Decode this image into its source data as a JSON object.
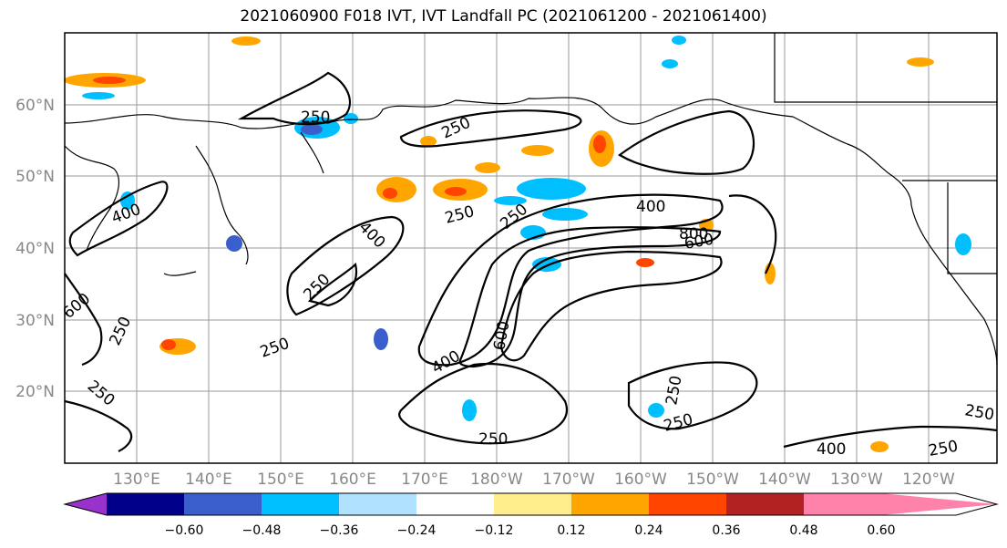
{
  "title": "2021060900 F018 IVT, IVT Landfall PC (2021061200 - 2021061400)",
  "lat_labels": [
    "60°N",
    "50°N",
    "40°N",
    "30°N",
    "20°N"
  ],
  "lon_labels": [
    "130°E",
    "140°E",
    "150°E",
    "160°E",
    "170°E",
    "180°W",
    "170°W",
    "160°W",
    "150°W",
    "140°W",
    "130°W",
    "120°W"
  ],
  "contour_labels": [
    "250",
    "250",
    "250",
    "250",
    "250",
    "250",
    "250",
    "250",
    "250",
    "250",
    "250",
    "250",
    "250",
    "400",
    "400",
    "400",
    "400",
    "400",
    "600",
    "600",
    "600",
    "800"
  ],
  "colorbar": {
    "ticks": [
      "−0.60",
      "−0.48",
      "−0.36",
      "−0.24",
      "−0.12",
      "0.12",
      "0.24",
      "0.36",
      "0.48",
      "0.60"
    ],
    "colors": [
      "#9932CC",
      "#00008B",
      "#3A5FCD",
      "#00BFFF",
      "#B0E2FF",
      "#FFFFFF",
      "#FFEC8B",
      "#FFA500",
      "#FF4500",
      "#B22222",
      "#FF82AB"
    ]
  }
}
